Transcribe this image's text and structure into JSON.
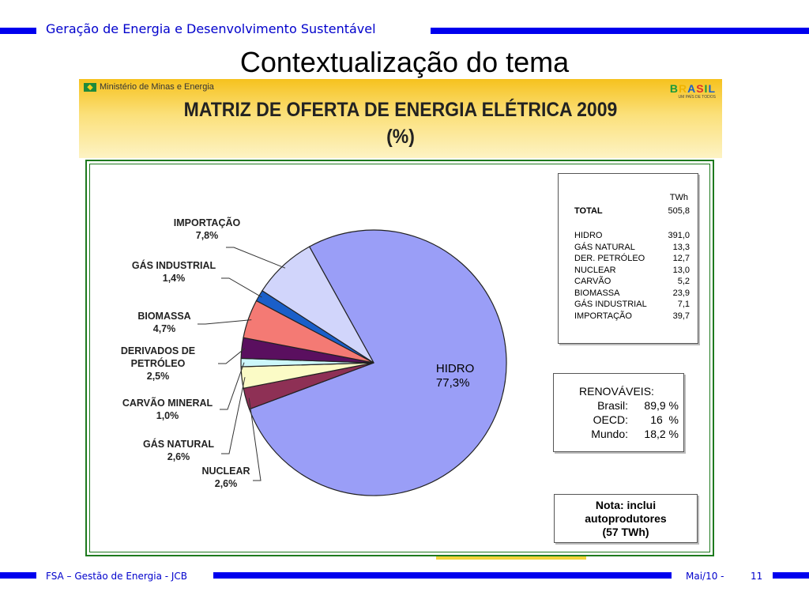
{
  "header": {
    "text": "Geração de Energia e Desenvolvimento Sustentável"
  },
  "slide_title": "Contextualização do tema",
  "banner": {
    "ministry": "Ministério de Minas e Energia",
    "brasil_logo": "BRASIL",
    "brasil_sub": "UM PAÍS DE TODOS"
  },
  "chart_data": {
    "type": "pie",
    "title_line1": "MATRIZ DE OFERTA DE ENERGIA ELÉTRICA 2009",
    "title_line2": "(%)",
    "slices": [
      {
        "label": "HIDRO",
        "value": 77.3,
        "value_label": "77,3%",
        "color": "#9a9ef7"
      },
      {
        "label": "NUCLEAR",
        "value": 2.6,
        "value_label": "2,6%",
        "color": "#8e3055"
      },
      {
        "label": "GÁS NATURAL",
        "value": 2.6,
        "value_label": "2,6%",
        "color": "#fbfbc6"
      },
      {
        "label": "CARVÃO MINERAL",
        "value": 1.0,
        "value_label": "1,0%",
        "color": "#ccf7fa"
      },
      {
        "label": "DERIVADOS DE PETRÓLEO",
        "label_line1": "DERIVADOS DE",
        "label_line2": "PETRÓLEO",
        "value": 2.5,
        "value_label": "2,5%",
        "color": "#5a0f5f"
      },
      {
        "label": "BIOMASSA",
        "value": 4.7,
        "value_label": "4,7%",
        "color": "#f47a74"
      },
      {
        "label": "GÁS INDUSTRIAL",
        "value": 1.4,
        "value_label": "1,4%",
        "color": "#1a5fc9"
      },
      {
        "label": "IMPORTAÇÃO",
        "value": 7.8,
        "value_label": "7,8%",
        "color": "#d1d5fb"
      }
    ]
  },
  "twh_table": {
    "unit": "TWh",
    "total_label": "TOTAL",
    "total_value": "505,8",
    "rows": [
      {
        "label": "HIDRO",
        "value": "391,0"
      },
      {
        "label": "GÁS NATURAL",
        "value": "13,3"
      },
      {
        "label": "DER. PETRÓLEO",
        "value": "12,7"
      },
      {
        "label": "NUCLEAR",
        "value": "13,0"
      },
      {
        "label": "CARVÃO",
        "value": "5,2"
      },
      {
        "label": "BIOMASSA",
        "value": "23,9"
      },
      {
        "label": "GÁS INDUSTRIAL",
        "value": "7,1"
      },
      {
        "label": "IMPORTAÇÃO",
        "value": "39,7"
      }
    ]
  },
  "renewables": {
    "title": "RENOVÁVEIS:",
    "rows": [
      {
        "label": "Brasil:",
        "value": "89,9 %"
      },
      {
        "label": "OECD:",
        "value": "16  %"
      },
      {
        "label": "Mundo:",
        "value": "18,2 %"
      }
    ]
  },
  "note": {
    "line1": "Nota:  inclui",
    "line2": "autoprodutores",
    "line3": "(57 TWh)"
  },
  "footer": {
    "left": "FSA – Gestão de Energia - JCB",
    "date": "Mai/10 -",
    "page": "11"
  },
  "colors": {
    "rule_blue": "#0000ee",
    "frame_green": "#1e7a1e"
  }
}
